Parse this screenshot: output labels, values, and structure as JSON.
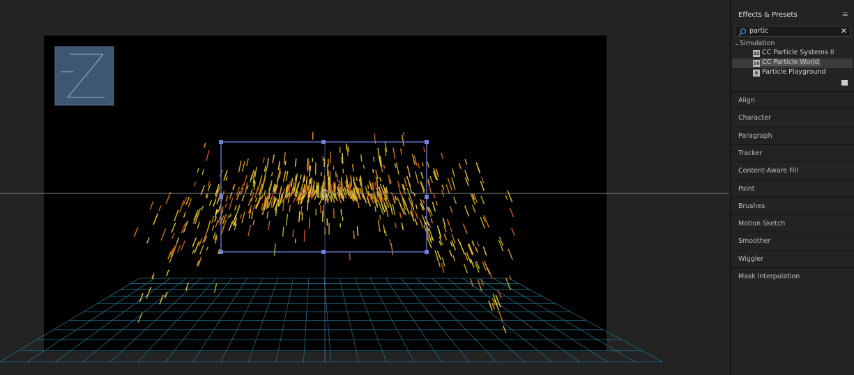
{
  "panel": {
    "title": "Effects & Presets",
    "search": "partic",
    "group": "Simulation",
    "items": [
      {
        "badge": "32",
        "label": "CC Particle Systems II"
      },
      {
        "badge": "16",
        "label": "CC Particle World"
      },
      {
        "badge": "8",
        "label": "Particle Playground"
      }
    ],
    "sections": [
      "Align",
      "Character",
      "Paragraph",
      "Tracker",
      "Content-Aware Fill",
      "Paint",
      "Brushes",
      "Motion Sketch",
      "Smoother",
      "Wiggler",
      "Mask Interpolation"
    ]
  }
}
